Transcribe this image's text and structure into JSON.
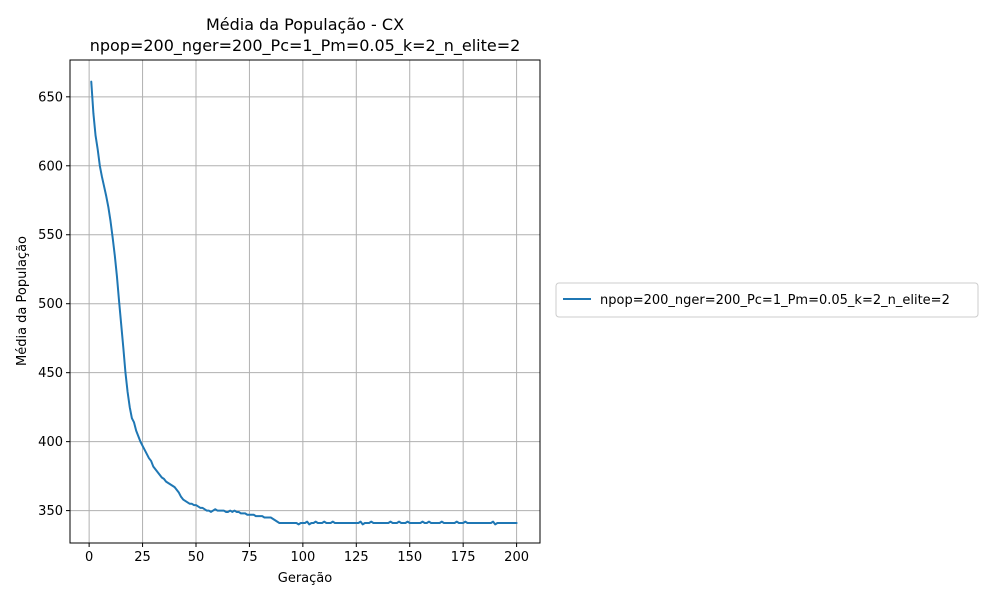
{
  "chart_data": {
    "type": "line",
    "title": "Média da População - CX",
    "subtitle": "npop=200_nger=200_Pc=1_Pm=0.05_k=2_n_elite=2",
    "xlabel": "Geração",
    "ylabel": "Média da População",
    "xlim": [
      -8.95,
      210.95
    ],
    "ylim": [
      326.5,
      676.7
    ],
    "xticks": [
      0,
      25,
      50,
      75,
      100,
      125,
      150,
      175,
      200
    ],
    "xtick_labels": [
      "0",
      "25",
      "50",
      "75",
      "100",
      "125",
      "150",
      "175",
      "200"
    ],
    "yticks": [
      350,
      400,
      450,
      500,
      550,
      600,
      650
    ],
    "ytick_labels": [
      "350",
      "400",
      "450",
      "500",
      "550",
      "600",
      "650"
    ],
    "grid": true,
    "legend_position": "outside-right",
    "series": [
      {
        "name": "npop=200_nger=200_Pc=1_Pm=0.05_k=2_n_elite=2",
        "color": "#1f77b4",
        "x": [
          1,
          2,
          3,
          4,
          5,
          6,
          7,
          8,
          9,
          10,
          11,
          12,
          13,
          14,
          15,
          16,
          17,
          18,
          19,
          20,
          21,
          22,
          23,
          24,
          25,
          26,
          27,
          28,
          29,
          30,
          31,
          32,
          33,
          34,
          35,
          36,
          37,
          38,
          39,
          40,
          41,
          42,
          43,
          44,
          45,
          46,
          47,
          48,
          49,
          50,
          51,
          52,
          53,
          54,
          55,
          56,
          57,
          58,
          59,
          60,
          61,
          62,
          63,
          64,
          65,
          66,
          67,
          68,
          69,
          70,
          71,
          72,
          73,
          74,
          75,
          76,
          77,
          78,
          79,
          80,
          81,
          82,
          83,
          84,
          85,
          86,
          87,
          88,
          89,
          90,
          91,
          92,
          93,
          94,
          95,
          96,
          97,
          98,
          99,
          100,
          101,
          102,
          103,
          104,
          105,
          106,
          107,
          108,
          109,
          110,
          111,
          112,
          113,
          114,
          115,
          116,
          117,
          118,
          119,
          120,
          121,
          122,
          123,
          124,
          125,
          126,
          127,
          128,
          129,
          130,
          131,
          132,
          133,
          134,
          135,
          136,
          137,
          138,
          139,
          140,
          141,
          142,
          143,
          144,
          145,
          146,
          147,
          148,
          149,
          150,
          151,
          152,
          153,
          154,
          155,
          156,
          157,
          158,
          159,
          160,
          161,
          162,
          163,
          164,
          165,
          166,
          167,
          168,
          169,
          170,
          171,
          172,
          173,
          174,
          175,
          176,
          177,
          178,
          179,
          180,
          181,
          182,
          183,
          184,
          185,
          186,
          187,
          188,
          189,
          190,
          191,
          192,
          193,
          194,
          195,
          196,
          197,
          198,
          199,
          200
        ],
        "values": [
          661,
          638,
          622,
          612,
          600,
          592,
          585,
          578,
          570,
          560,
          548,
          535,
          520,
          502,
          485,
          468,
          450,
          436,
          425,
          417,
          414,
          408,
          404,
          400,
          397,
          394,
          391,
          388,
          386,
          382,
          380,
          378,
          376,
          374,
          373,
          371,
          370,
          369,
          368,
          367,
          365,
          363,
          360,
          358,
          357,
          356,
          355,
          355,
          354,
          354,
          353,
          352,
          352,
          351,
          350,
          350,
          349,
          350,
          351,
          350,
          350,
          350,
          350,
          349,
          349,
          350,
          349,
          350,
          349,
          349,
          348,
          348,
          348,
          347,
          347,
          347,
          347,
          346,
          346,
          346,
          346,
          345,
          345,
          345,
          345,
          344,
          343,
          342,
          341,
          341,
          341,
          341,
          341,
          341,
          341,
          341,
          341,
          340,
          341,
          341,
          341,
          342,
          340,
          341,
          341,
          342,
          341,
          341,
          341,
          342,
          341,
          341,
          341,
          342,
          341,
          341,
          341,
          341,
          341,
          341,
          341,
          341,
          341,
          341,
          341,
          341,
          342,
          340,
          341,
          341,
          341,
          342,
          341,
          341,
          341,
          341,
          341,
          341,
          341,
          341,
          342,
          341,
          341,
          341,
          342,
          341,
          341,
          341,
          342,
          341,
          341,
          341,
          341,
          341,
          341,
          342,
          341,
          341,
          342,
          341,
          341,
          341,
          341,
          341,
          342,
          341,
          341,
          341,
          341,
          341,
          341,
          342,
          341,
          341,
          341,
          342,
          341,
          341,
          341,
          341,
          341,
          341,
          341,
          341,
          341,
          341,
          341,
          341,
          342,
          340,
          341,
          341,
          341,
          341,
          341,
          341,
          341,
          341,
          341,
          341
        ]
      }
    ]
  }
}
